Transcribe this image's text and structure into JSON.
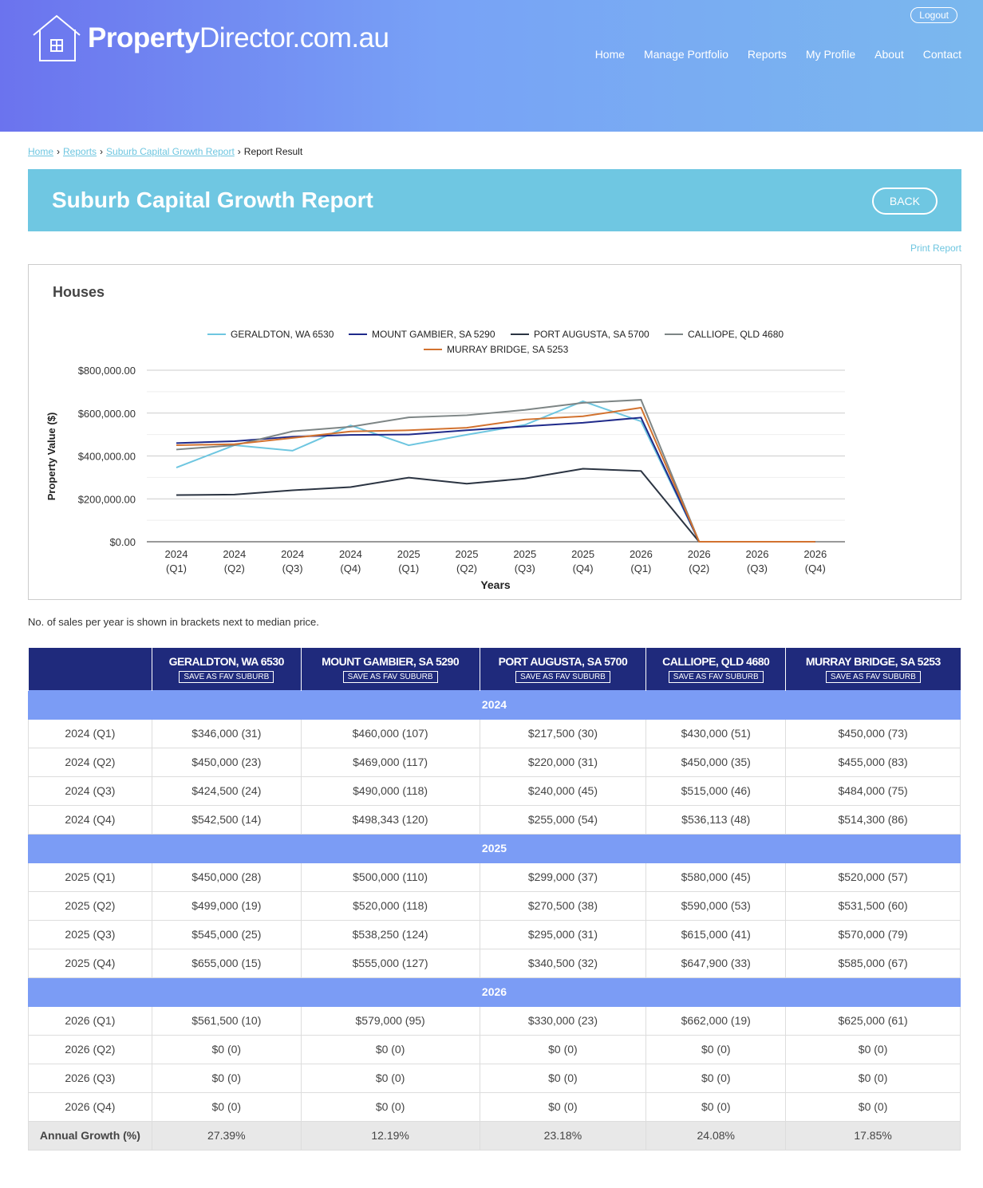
{
  "header": {
    "logo_bold": "Property",
    "logo_rest": "Director.com.au",
    "logout": "Logout",
    "nav": [
      "Home",
      "Manage Portfolio",
      "Reports",
      "My Profile",
      "About",
      "Contact"
    ]
  },
  "breadcrumb": {
    "items": [
      "Home",
      "Reports",
      "Suburb Capital Growth Report"
    ],
    "current": "Report Result"
  },
  "banner": {
    "title": "Suburb Capital Growth Report",
    "back": "BACK"
  },
  "print": "Print Report",
  "chart_title": "Houses",
  "chart_data": {
    "type": "line",
    "xlabel": "Years",
    "ylabel": "Property Value ($)",
    "ylim": [
      0,
      800000
    ],
    "yticks": [
      "$0.00",
      "$200,000.00",
      "$400,000.00",
      "$600,000.00",
      "$800,000.00"
    ],
    "categories": [
      [
        "2024",
        "(Q1)"
      ],
      [
        "2024",
        "(Q2)"
      ],
      [
        "2024",
        "(Q3)"
      ],
      [
        "2024",
        "(Q4)"
      ],
      [
        "2025",
        "(Q1)"
      ],
      [
        "2025",
        "(Q2)"
      ],
      [
        "2025",
        "(Q3)"
      ],
      [
        "2025",
        "(Q4)"
      ],
      [
        "2026",
        "(Q1)"
      ],
      [
        "2026",
        "(Q2)"
      ],
      [
        "2026",
        "(Q3)"
      ],
      [
        "2026",
        "(Q4)"
      ]
    ],
    "legend_position": "top-center",
    "series": [
      {
        "name": "GERALDTON, WA 6530",
        "color": "#6ec6e0",
        "values": [
          346000,
          450000,
          424500,
          542500,
          450000,
          499000,
          545000,
          655000,
          561500,
          0,
          0,
          0
        ]
      },
      {
        "name": "MOUNT GAMBIER, SA 5290",
        "color": "#1f2a8a",
        "values": [
          460000,
          469000,
          490000,
          498343,
          500000,
          520000,
          538250,
          555000,
          579000,
          0,
          0,
          0
        ]
      },
      {
        "name": "PORT AUGUSTA, SA 5700",
        "color": "#2b3442",
        "values": [
          217500,
          220000,
          240000,
          255000,
          299000,
          270500,
          295000,
          340500,
          330000,
          0,
          0,
          0
        ]
      },
      {
        "name": "CALLIOPE, QLD 4680",
        "color": "#7d8585",
        "values": [
          430000,
          450000,
          515000,
          536113,
          580000,
          590000,
          615000,
          647900,
          662000,
          0,
          0,
          0
        ]
      },
      {
        "name": "MURRAY BRIDGE, SA 5253",
        "color": "#d2722f",
        "values": [
          450000,
          455000,
          484000,
          514300,
          520000,
          531500,
          570000,
          585000,
          625000,
          0,
          0,
          0
        ]
      }
    ]
  },
  "note": "No. of sales per year is shown in brackets next to median price.",
  "table": {
    "fav_label": "SAVE AS FAV SUBURB",
    "columns": [
      "GERALDTON, WA 6530",
      "MOUNT GAMBIER, SA 5290",
      "PORT AUGUSTA, SA 5700",
      "CALLIOPE, QLD 4680",
      "MURRAY BRIDGE, SA 5253"
    ],
    "groups": [
      {
        "year": "2024",
        "rows": [
          [
            "2024 (Q1)",
            "$346,000 (31)",
            "$460,000 (107)",
            "$217,500 (30)",
            "$430,000 (51)",
            "$450,000 (73)"
          ],
          [
            "2024 (Q2)",
            "$450,000 (23)",
            "$469,000 (117)",
            "$220,000 (31)",
            "$450,000 (35)",
            "$455,000 (83)"
          ],
          [
            "2024 (Q3)",
            "$424,500 (24)",
            "$490,000 (118)",
            "$240,000 (45)",
            "$515,000 (46)",
            "$484,000 (75)"
          ],
          [
            "2024 (Q4)",
            "$542,500 (14)",
            "$498,343 (120)",
            "$255,000 (54)",
            "$536,113 (48)",
            "$514,300 (86)"
          ]
        ]
      },
      {
        "year": "2025",
        "rows": [
          [
            "2025 (Q1)",
            "$450,000 (28)",
            "$500,000 (110)",
            "$299,000 (37)",
            "$580,000 (45)",
            "$520,000 (57)"
          ],
          [
            "2025 (Q2)",
            "$499,000 (19)",
            "$520,000 (118)",
            "$270,500 (38)",
            "$590,000 (53)",
            "$531,500 (60)"
          ],
          [
            "2025 (Q3)",
            "$545,000 (25)",
            "$538,250 (124)",
            "$295,000 (31)",
            "$615,000 (41)",
            "$570,000 (79)"
          ],
          [
            "2025 (Q4)",
            "$655,000 (15)",
            "$555,000 (127)",
            "$340,500 (32)",
            "$647,900 (33)",
            "$585,000 (67)"
          ]
        ]
      },
      {
        "year": "2026",
        "rows": [
          [
            "2026 (Q1)",
            "$561,500 (10)",
            "$579,000 (95)",
            "$330,000 (23)",
            "$662,000 (19)",
            "$625,000 (61)"
          ],
          [
            "2026 (Q2)",
            "$0 (0)",
            "$0 (0)",
            "$0 (0)",
            "$0 (0)",
            "$0 (0)"
          ],
          [
            "2026 (Q3)",
            "$0 (0)",
            "$0 (0)",
            "$0 (0)",
            "$0 (0)",
            "$0 (0)"
          ],
          [
            "2026 (Q4)",
            "$0 (0)",
            "$0 (0)",
            "$0 (0)",
            "$0 (0)",
            "$0 (0)"
          ]
        ]
      }
    ],
    "growth": [
      "Annual Growth (%)",
      "27.39%",
      "12.19%",
      "23.18%",
      "24.08%",
      "17.85%"
    ]
  }
}
